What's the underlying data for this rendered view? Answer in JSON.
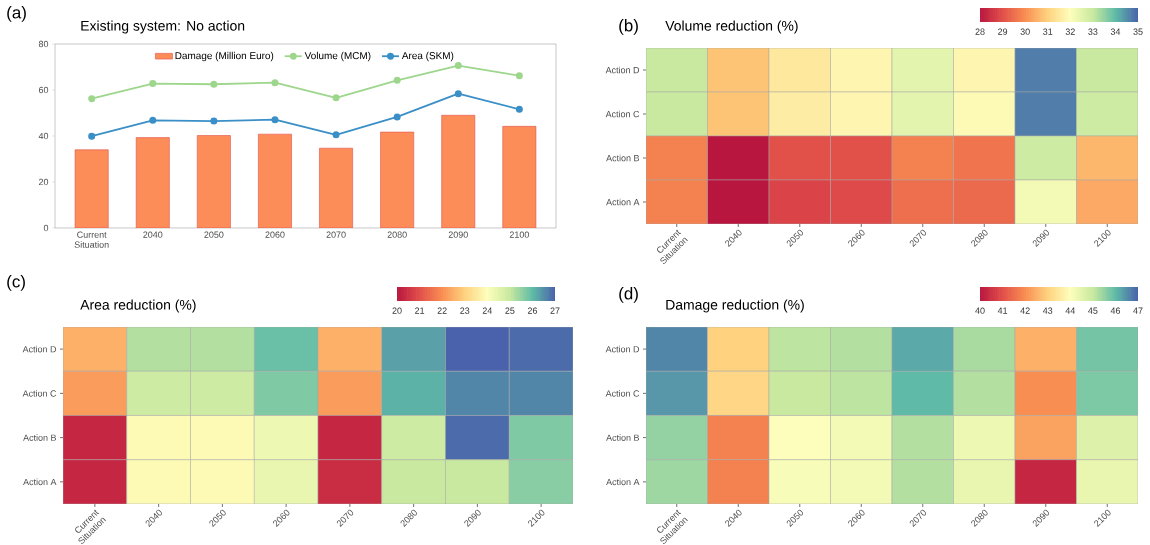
{
  "chart_data": [
    {
      "type": "bar",
      "title": "Existing system: No action",
      "annotations": [
        "(a)"
      ],
      "categories": [
        "Current Situation",
        "2040",
        "2050",
        "2060",
        "2070",
        "2080",
        "2090",
        "2100"
      ],
      "series": [
        {
          "name": "Damage (Million Euro)",
          "type": "bar",
          "color": "#fc8d59",
          "values": [
            34,
            39.3,
            40.2,
            40.8,
            34.7,
            41.7,
            49,
            44.2
          ]
        },
        {
          "name": "Volume (MCM)",
          "type": "line",
          "color": "#9dd68c",
          "values": [
            56.2,
            62.8,
            62.5,
            63.2,
            56.6,
            64.2,
            70.6,
            66.2
          ]
        },
        {
          "name": "Area (SKM)",
          "type": "line",
          "color": "#3a8fc7",
          "values": [
            39.9,
            46.8,
            46.5,
            47.1,
            40.5,
            48.3,
            58.4,
            51.6
          ]
        }
      ],
      "ylim": [
        0,
        80
      ],
      "yticks": [
        0,
        20,
        40,
        60,
        80
      ],
      "legend": "top",
      "marker": "circle",
      "line_style": "solid"
    },
    {
      "type": "heatmap",
      "title": "Volume reduction (%)",
      "annotations": [
        "(b)"
      ],
      "categories": [
        "Current Situation",
        "2040",
        "2050",
        "2060",
        "2070",
        "2080",
        "2090",
        "2100"
      ],
      "y_categories": [
        "Action D",
        "Action C",
        "Action B",
        "Action A"
      ],
      "cells": [
        [
          33,
          30.8,
          31.5,
          31.8,
          32.5,
          31.8,
          34.7,
          33
        ],
        [
          33,
          30.8,
          31.6,
          31.8,
          32.5,
          31.9,
          34.7,
          32.9
        ],
        [
          29.8,
          28,
          29,
          29,
          29.8,
          29.6,
          32.9,
          30.6
        ],
        [
          29.8,
          28,
          28.8,
          28.9,
          29.5,
          29.4,
          32.2,
          30.4
        ]
      ],
      "clim": [
        28,
        35
      ],
      "cticks": [
        28,
        29,
        30,
        31,
        32,
        33,
        34,
        35
      ]
    },
    {
      "type": "heatmap",
      "title": "Area reduction (%)",
      "annotations": [
        "(c)"
      ],
      "categories": [
        "Current Situation",
        "2040",
        "2050",
        "2060",
        "2070",
        "2080",
        "2090",
        "2100"
      ],
      "y_categories": [
        "Action D",
        "Action C",
        "Action B",
        "Action A"
      ],
      "cells": [
        [
          22.5,
          25.2,
          25.2,
          25.9,
          22.5,
          26.3,
          27,
          26.9
        ],
        [
          22.2,
          24.9,
          24.9,
          25.7,
          22.2,
          26.1,
          26.6,
          26.6
        ],
        [
          20.3,
          23.9,
          23.9,
          24.3,
          20.3,
          24.9,
          26.9,
          25.7
        ],
        [
          20.3,
          23.9,
          23.9,
          24.4,
          20.4,
          25,
          25,
          25.6
        ]
      ],
      "clim": [
        20,
        27
      ],
      "cticks": [
        20,
        21,
        22,
        23,
        24,
        25,
        26,
        27
      ]
    },
    {
      "type": "heatmap",
      "title": "Damage reduction (%)",
      "annotations": [
        "(d)"
      ],
      "categories": [
        "Current Situation",
        "2040",
        "2050",
        "2060",
        "2070",
        "2080",
        "2090",
        "2100"
      ],
      "y_categories": [
        "Action D",
        "Action C",
        "Action B",
        "Action A"
      ],
      "cells": [
        [
          46.6,
          43,
          45.1,
          45.2,
          46.2,
          45.3,
          42.5,
          45.8
        ],
        [
          46.4,
          43.1,
          45,
          45.1,
          46,
          45.2,
          42,
          45.7
        ],
        [
          45.5,
          41.8,
          44,
          44.2,
          45.2,
          44.3,
          42.3,
          44.6
        ],
        [
          45.4,
          41.8,
          44.1,
          44.2,
          45.2,
          44.4,
          40.3,
          44.4
        ]
      ],
      "clim": [
        40,
        47
      ],
      "cticks": [
        40,
        41,
        42,
        43,
        44,
        45,
        46,
        47
      ]
    }
  ]
}
